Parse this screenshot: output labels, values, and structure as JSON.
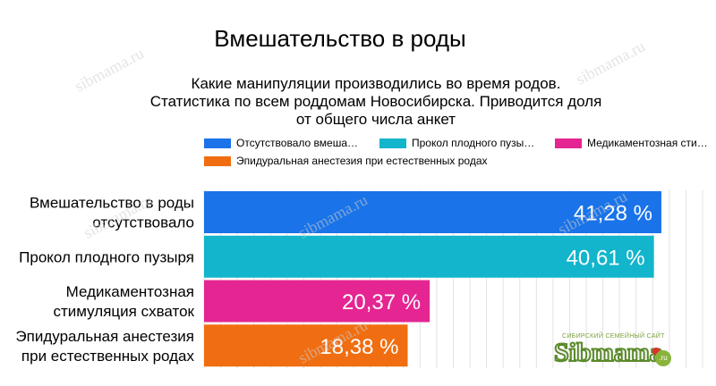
{
  "chart_data": {
    "type": "bar",
    "orientation": "horizontal",
    "title": "Вмешательство в роды",
    "subtitle": [
      "Какие манипуляции производились во время родов.",
      "Статистика по всем роддомам Новосибирска. Приводится доля",
      "от общего числа анкет"
    ],
    "categories": [
      [
        "Вмешательство в роды",
        "отсутствовало"
      ],
      [
        "Прокол плодного пузыря"
      ],
      [
        "Медикаментозная",
        "стимуляция схваток"
      ],
      [
        "Эпидуральная анестезия",
        "при естественных родах"
      ]
    ],
    "values": [
      41.28,
      40.61,
      20.37,
      18.38
    ],
    "value_labels": [
      "41,28 %",
      "40,61 %",
      "20,37 %",
      "18,38 %"
    ],
    "colors": [
      "#1a73e8",
      "#12b5cb",
      "#e52592",
      "#f06e11"
    ],
    "legend": [
      "Отсутствовало вмеша…",
      "Прокол плодного пузы…",
      "Медикаментозная сти…",
      "Эпидуральная анестезия при естественных родах"
    ],
    "legend_position": "top",
    "xlim": [
      0,
      45
    ],
    "grid": true
  },
  "watermark": "sibmama.ru",
  "logo": {
    "tagline": "СИБИРСКИЙ СЕМЕЙНЫЙ САЙТ",
    "name": "Sibmama",
    "suffix": ".ru"
  }
}
